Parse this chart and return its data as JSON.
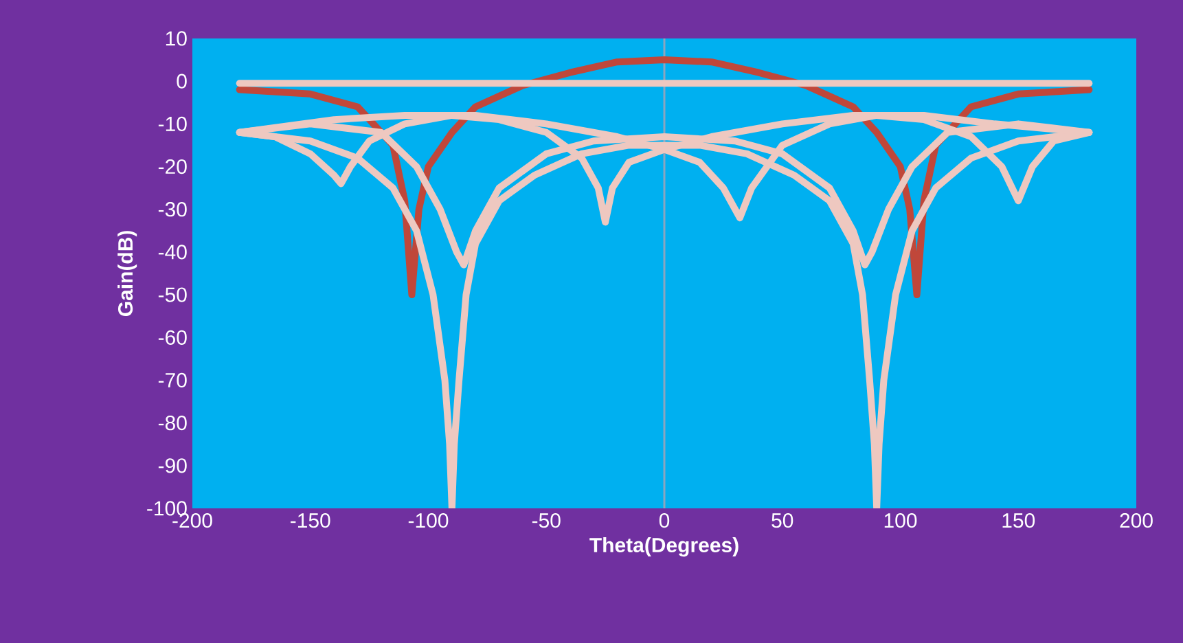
{
  "chart_data": {
    "type": "line",
    "xlabel": "Theta(Degrees)",
    "ylabel": "Gain(dB)",
    "xlim": [
      -200,
      200
    ],
    "xticks": [
      -200,
      -150,
      -100,
      -50,
      0,
      50,
      100,
      150,
      200
    ],
    "ylim": [
      -100,
      10
    ],
    "yticks": [
      -100,
      -90,
      -80,
      -70,
      -60,
      -50,
      -40,
      -30,
      -20,
      -10,
      0,
      10
    ],
    "ref_lines": [
      {
        "axis": "x",
        "value": 0,
        "color": "#8aa6c0"
      }
    ],
    "series": [
      {
        "color": "#c0473a",
        "x": [
          -180,
          -150,
          -130,
          -115,
          -110,
          -107,
          -104,
          -100,
          -90,
          -80,
          -60,
          -40,
          -20,
          0,
          20,
          40,
          60,
          80,
          90,
          100,
          104,
          107,
          110,
          115,
          130,
          150,
          180
        ],
        "values": [
          -2,
          -3,
          -6,
          -15,
          -28,
          -50,
          -30,
          -20,
          -12,
          -6,
          -1,
          2,
          4.5,
          5,
          4.5,
          2,
          -1,
          -6,
          -12,
          -20,
          -30,
          -50,
          -28,
          -15,
          -6,
          -3,
          -2
        ]
      },
      {
        "color": "#eec8c0",
        "x": [
          -180,
          180
        ],
        "values": [
          -0.5,
          -0.5
        ]
      },
      {
        "color": "#eec8c0",
        "x": [
          -180,
          -150,
          -130,
          -115,
          -105,
          -98,
          -93,
          -91,
          -90,
          -89,
          -87,
          -84,
          -80,
          -70,
          -55,
          -35,
          -15,
          0,
          15,
          35,
          55,
          70,
          80,
          84,
          87,
          89,
          90,
          91,
          93,
          98,
          105,
          115,
          130,
          150,
          180
        ],
        "values": [
          -12,
          -14,
          -18,
          -25,
          -35,
          -50,
          -70,
          -85,
          -100,
          -85,
          -70,
          -50,
          -38,
          -28,
          -22,
          -17,
          -15,
          -15,
          -15,
          -17,
          -22,
          -28,
          -38,
          -50,
          -70,
          -85,
          -100,
          -85,
          -70,
          -50,
          -35,
          -25,
          -18,
          -14,
          -12
        ]
      },
      {
        "color": "#eec8c0",
        "x": [
          -180,
          -150,
          -120,
          -105,
          -95,
          -88,
          -85,
          -80,
          -70,
          -50,
          -30,
          0,
          30,
          50,
          70,
          80,
          85,
          88,
          95,
          105,
          120,
          150,
          180
        ],
        "values": [
          -12,
          -10,
          -12,
          -20,
          -30,
          -40,
          -43,
          -35,
          -25,
          -17,
          -14,
          -13,
          -14,
          -17,
          -25,
          -35,
          -43,
          -40,
          -30,
          -20,
          -12,
          -10,
          -12
        ]
      },
      {
        "color": "#eec8c0",
        "x": [
          -180,
          -165,
          -150,
          -140,
          -137,
          -133,
          -125,
          -110,
          -90,
          -70,
          -50,
          -35,
          -28,
          -25,
          -22,
          -15,
          0,
          20,
          50,
          80,
          110,
          140,
          180
        ],
        "values": [
          -12,
          -13,
          -17,
          -22,
          -24,
          -20,
          -14,
          -10,
          -8,
          -9,
          -12,
          -18,
          -25,
          -33,
          -25,
          -19,
          -16,
          -13,
          -10,
          -8,
          -8,
          -10,
          -12
        ]
      },
      {
        "color": "#eec8c0",
        "x": [
          -180,
          -140,
          -110,
          -80,
          -50,
          -20,
          0,
          15,
          25,
          32,
          37,
          50,
          70,
          90,
          110,
          130,
          143,
          150,
          156,
          165,
          180
        ],
        "values": [
          -12,
          -9,
          -8,
          -8,
          -10,
          -13,
          -16,
          -19,
          -25,
          -32,
          -25,
          -15,
          -10,
          -8,
          -9,
          -13,
          -20,
          -28,
          -20,
          -14,
          -12
        ]
      }
    ]
  }
}
